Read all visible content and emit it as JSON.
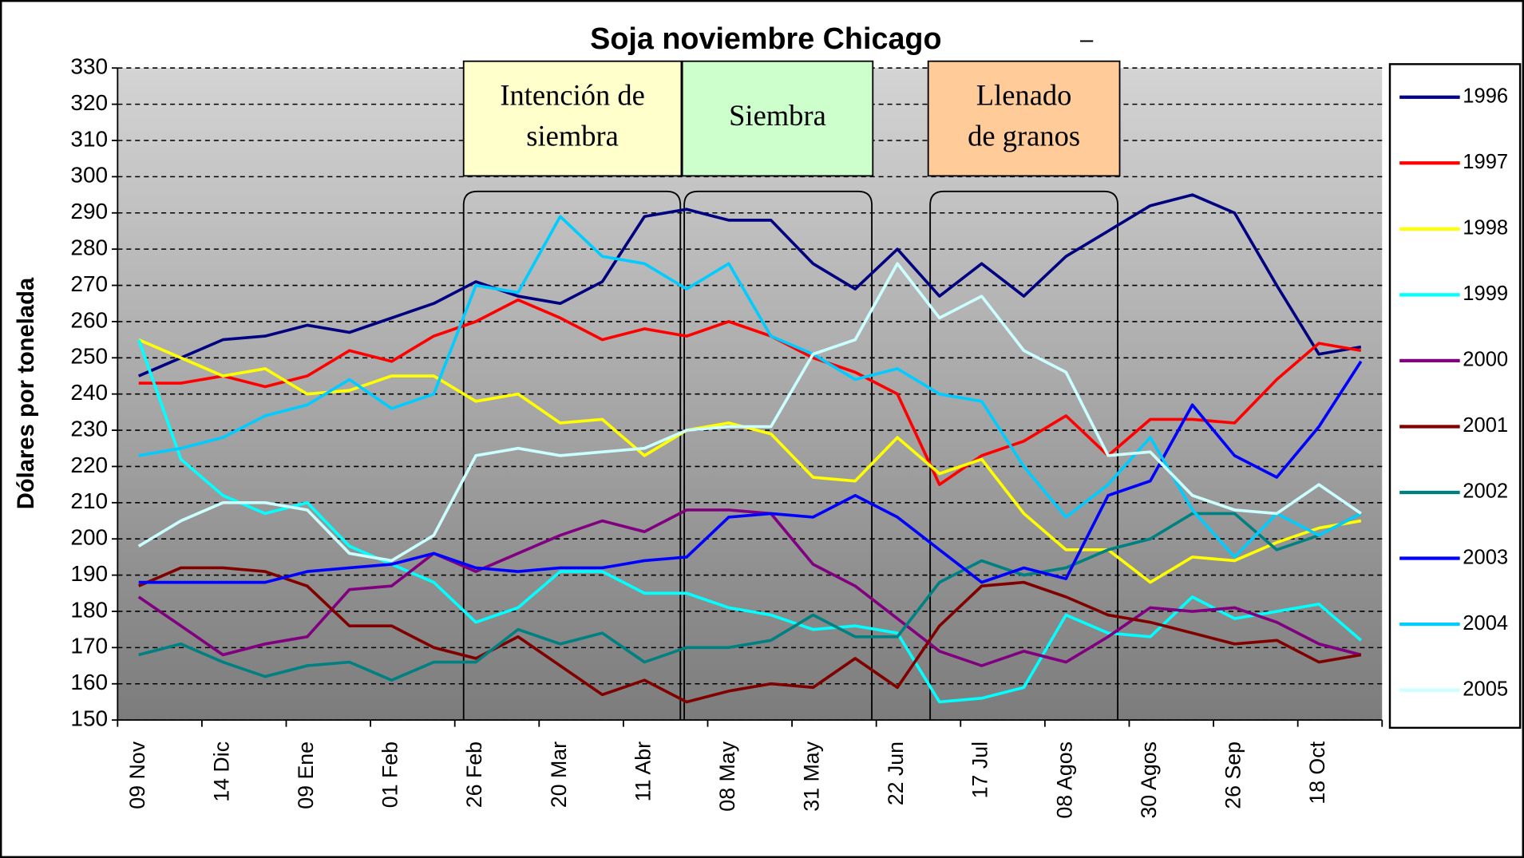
{
  "chart_data": {
    "type": "line",
    "title": "Soja noviembre Chicago",
    "subtitle": "–",
    "y_label": "Dólares por tonelada",
    "categories": [
      "09 Nov",
      null,
      "14 Dic",
      null,
      "09 Ene",
      null,
      "01 Feb",
      null,
      "26 Feb",
      null,
      "20 Mar",
      null,
      "11 Abr",
      null,
      "08 May",
      null,
      "31 May",
      null,
      "22 Jun",
      null,
      "17 Jul",
      null,
      "08 Agos",
      null,
      "30 Agos",
      null,
      "26 Sep",
      null,
      "18 Oct",
      null
    ],
    "ylim": [
      150,
      330
    ],
    "yticks": [
      150,
      160,
      170,
      180,
      190,
      200,
      210,
      220,
      230,
      240,
      250,
      260,
      270,
      280,
      290,
      300,
      310,
      320,
      330
    ],
    "grid": true,
    "legend": "right",
    "annotations": [
      {
        "lines": [
          "Intención de",
          "siembra"
        ],
        "color": "#ffffcc"
      },
      {
        "lines": [
          "Siembra"
        ],
        "color": "#ccffcc"
      },
      {
        "lines": [
          "Llenado",
          "de granos"
        ],
        "color": "#ffcc99"
      }
    ],
    "series": [
      {
        "name": "1996",
        "color": "#000080",
        "values": [
          245,
          250,
          255,
          256,
          259,
          257,
          261,
          265,
          271,
          267,
          265,
          271,
          289,
          291,
          288,
          288,
          276,
          269,
          280,
          267,
          276,
          267,
          278,
          285,
          292,
          295,
          290,
          270,
          251,
          253
        ]
      },
      {
        "name": "1997",
        "color": "#ff0000",
        "values": [
          243,
          243,
          245,
          242,
          245,
          252,
          249,
          256,
          260,
          266,
          261,
          255,
          258,
          256,
          260,
          256,
          250,
          246,
          240,
          215,
          223,
          227,
          234,
          223,
          233,
          233,
          232,
          244,
          254,
          252
        ]
      },
      {
        "name": "1998",
        "color": "#ffff00",
        "values": [
          255,
          250,
          245,
          247,
          240,
          241,
          245,
          245,
          238,
          240,
          232,
          233,
          223,
          230,
          232,
          229,
          217,
          216,
          228,
          218,
          222,
          207,
          197,
          197,
          188,
          195,
          194,
          199,
          203,
          205
        ]
      },
      {
        "name": "1999",
        "color": "#00ffff",
        "values": [
          255,
          222,
          212,
          207,
          210,
          198,
          193,
          188,
          177,
          181,
          191,
          191,
          185,
          185,
          181,
          179,
          175,
          176,
          174,
          155,
          156,
          159,
          179,
          174,
          173,
          184,
          178,
          180,
          182,
          172
        ]
      },
      {
        "name": "2000",
        "color": "#800080",
        "values": [
          184,
          176,
          168,
          171,
          173,
          186,
          187,
          196,
          191,
          196,
          201,
          205,
          202,
          208,
          208,
          207,
          193,
          187,
          178,
          169,
          165,
          169,
          166,
          173,
          181,
          180,
          181,
          177,
          171,
          168
        ]
      },
      {
        "name": "2001",
        "color": "#800000",
        "values": [
          187,
          192,
          192,
          191,
          187,
          176,
          176,
          170,
          167,
          173,
          165,
          157,
          161,
          155,
          158,
          160,
          159,
          167,
          159,
          176,
          187,
          188,
          184,
          179,
          177,
          174,
          171,
          172,
          166,
          168
        ]
      },
      {
        "name": "2002",
        "color": "#008080",
        "values": [
          168,
          171,
          166,
          162,
          165,
          166,
          161,
          166,
          166,
          175,
          171,
          174,
          166,
          170,
          170,
          172,
          179,
          173,
          173,
          188,
          194,
          190,
          192,
          197,
          200,
          207,
          207,
          197,
          201,
          207
        ]
      },
      {
        "name": "2003",
        "color": "#0000ff",
        "values": [
          188,
          188,
          188,
          188,
          191,
          192,
          193,
          196,
          192,
          191,
          192,
          192,
          194,
          195,
          206,
          207,
          206,
          212,
          206,
          197,
          188,
          192,
          189,
          212,
          216,
          237,
          223,
          217,
          231,
          249
        ]
      },
      {
        "name": "2004",
        "color": "#00ccff",
        "values": [
          223,
          225,
          228,
          234,
          237,
          244,
          236,
          240,
          270,
          268,
          289,
          278,
          276,
          269,
          276,
          256,
          251,
          244,
          247,
          240,
          238,
          220,
          206,
          215,
          228,
          208,
          195,
          207,
          201,
          207
        ]
      },
      {
        "name": "2005",
        "color": "#ccffff",
        "values": [
          198,
          205,
          210,
          210,
          208,
          196,
          194,
          201,
          223,
          225,
          223,
          224,
          225,
          230,
          231,
          231,
          251,
          255,
          276,
          261,
          267,
          252,
          246,
          223,
          224,
          212,
          208,
          207,
          215,
          207
        ]
      }
    ]
  }
}
